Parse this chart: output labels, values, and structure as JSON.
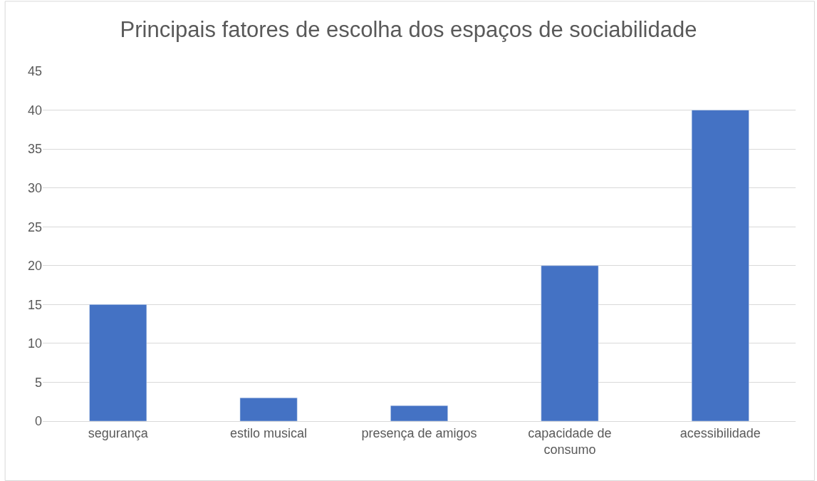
{
  "chart_data": {
    "type": "bar",
    "title": "Principais fatores de escolha dos espaços de sociabilidade",
    "categories": [
      "segurança",
      "estilo musical",
      "presença de amigos",
      "capacidade de consumo",
      "acessibilidade"
    ],
    "values": [
      15,
      3,
      2,
      20,
      40
    ],
    "color": "#4472c4",
    "ylim": [
      0,
      45
    ],
    "yticks": [
      0,
      5,
      10,
      15,
      20,
      25,
      30,
      35,
      40,
      45
    ],
    "grid": "y",
    "legend": false
  }
}
